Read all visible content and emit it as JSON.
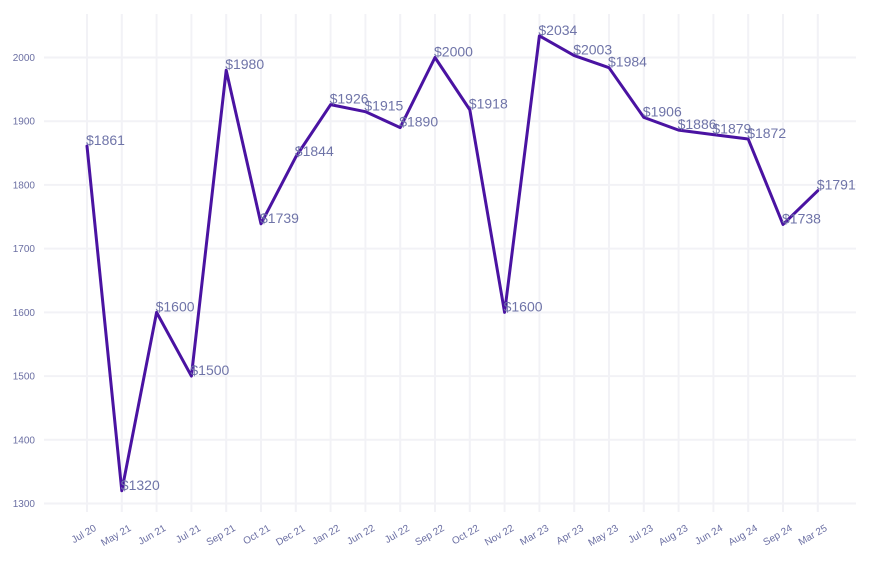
{
  "chart_data": {
    "type": "line",
    "title": "",
    "xlabel": "",
    "ylabel": "",
    "ylim": [
      1300,
      2050
    ],
    "y_ticks": [
      1300,
      1400,
      1500,
      1600,
      1700,
      1800,
      1900,
      2000
    ],
    "grid": true,
    "legend": "none",
    "colors": {
      "line": "#4a13a2",
      "labels": "#6f74a8",
      "ticks": "#6b6fa3",
      "grid": "#f2f2f6"
    },
    "categories": [
      "Jul 20",
      "May 21",
      "Jun 21",
      "Jul 21",
      "Sep 21",
      "Oct 21",
      "Dec 21",
      "Jan 22",
      "Jun 22",
      "Jul 22",
      "Sep 22",
      "Oct 22",
      "Nov 22",
      "Mar 23",
      "Apr 23",
      "May 23",
      "Jul 23",
      "Aug 23",
      "Jun 24",
      "Aug 24",
      "Sep 24",
      "Mar 25"
    ],
    "values": [
      1861,
      1320,
      1600,
      1500,
      1980,
      1739,
      1844,
      1926,
      1915,
      1890,
      2000,
      1918,
      1600,
      2034,
      2003,
      1984,
      1906,
      1886,
      1879,
      1872,
      1738,
      1791
    ],
    "data_labels": [
      "$1861",
      "$1320",
      "$1600",
      "$1500",
      "$1980",
      "$1739",
      "$1844",
      "$1926",
      "$1915",
      "$1890",
      "$2000",
      "$1918",
      "$1600",
      "$2034",
      "$2003",
      "$1984",
      "$1906",
      "$1886",
      "$1879",
      "$1872",
      "$1738",
      "$1791"
    ]
  }
}
